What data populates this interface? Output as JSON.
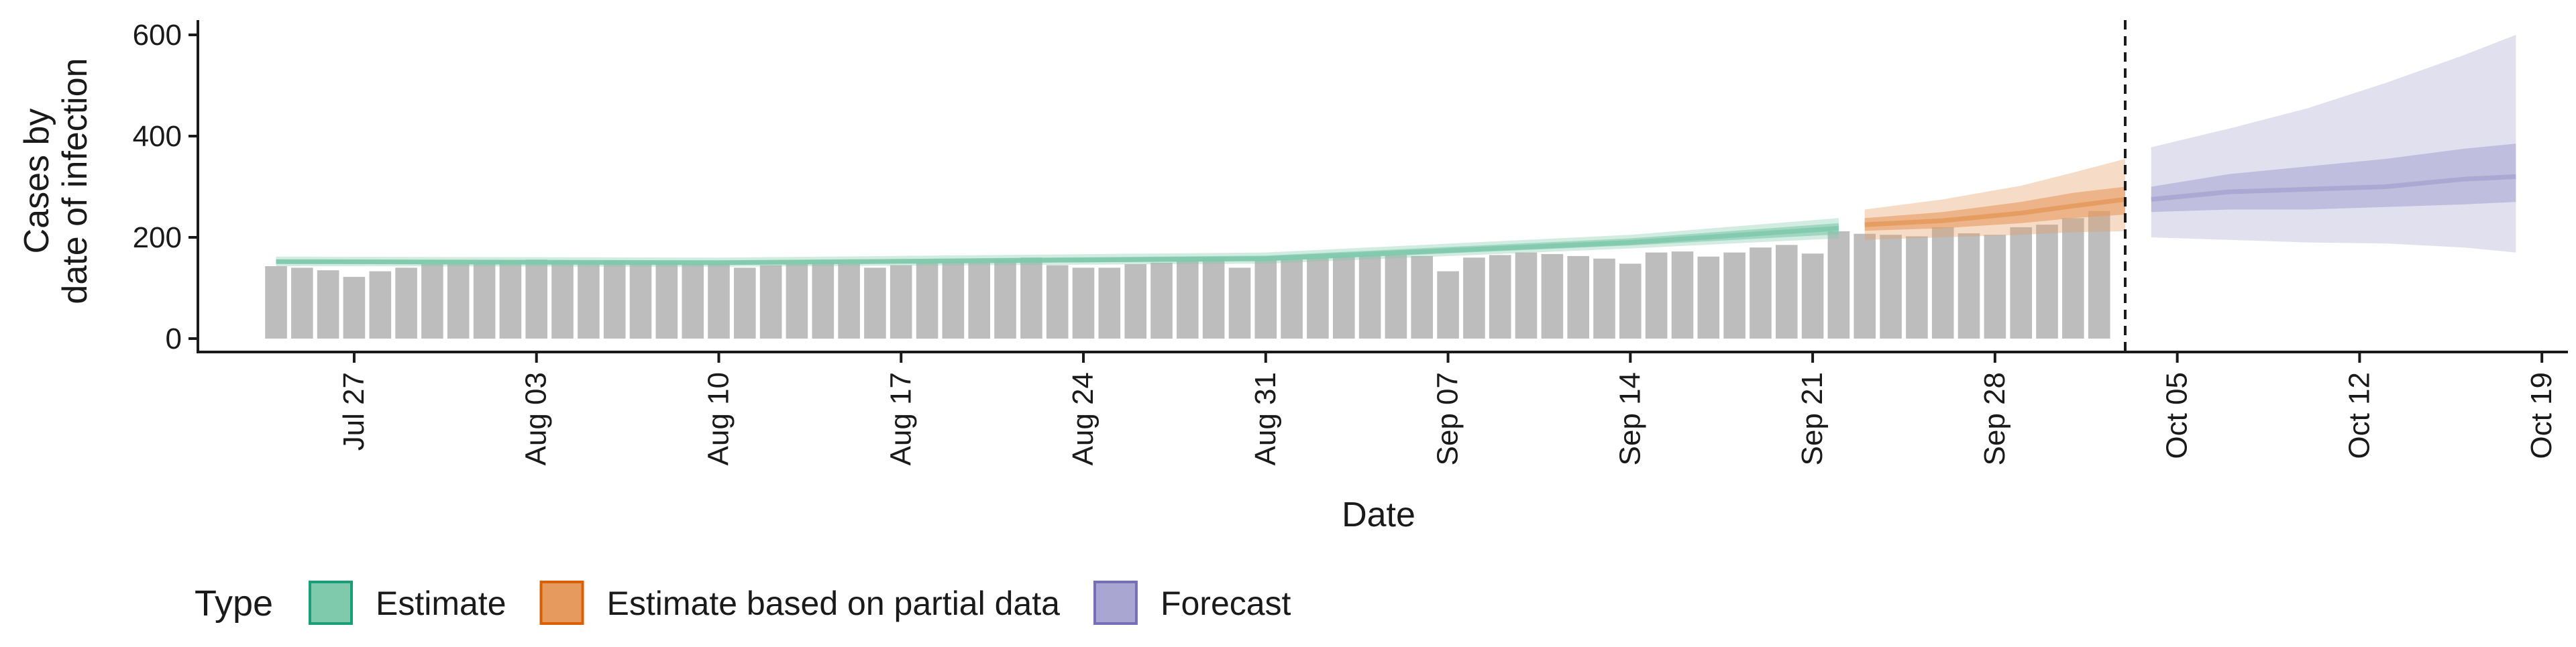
{
  "chart_data": {
    "type": "bar",
    "xlabel": "Date",
    "ylabel_lines": [
      "Cases by",
      "date of infection"
    ],
    "ylim": [
      0,
      620
    ],
    "y_ticks": [
      0,
      200,
      400,
      600
    ],
    "x_range": [
      "2021-07-21",
      "2021-10-20"
    ],
    "x_ticks": [
      {
        "date": "2021-07-27",
        "label": "Jul 27"
      },
      {
        "date": "2021-08-03",
        "label": "Aug 03"
      },
      {
        "date": "2021-08-10",
        "label": "Aug 10"
      },
      {
        "date": "2021-08-17",
        "label": "Aug 17"
      },
      {
        "date": "2021-08-24",
        "label": "Aug 24"
      },
      {
        "date": "2021-08-31",
        "label": "Aug 31"
      },
      {
        "date": "2021-09-07",
        "label": "Sep 07"
      },
      {
        "date": "2021-09-14",
        "label": "Sep 14"
      },
      {
        "date": "2021-09-21",
        "label": "Sep 21"
      },
      {
        "date": "2021-09-28",
        "label": "Sep 28"
      },
      {
        "date": "2021-10-05",
        "label": "Oct 05"
      },
      {
        "date": "2021-10-12",
        "label": "Oct 12"
      },
      {
        "date": "2021-10-19",
        "label": "Oct 19"
      }
    ],
    "observed": {
      "start_date": "2021-07-24",
      "color": "#bdbdbd",
      "values": [
        143,
        140,
        135,
        122,
        133,
        140,
        147,
        148,
        150,
        155,
        156,
        155,
        153,
        155,
        150,
        150,
        147,
        148,
        140,
        145,
        147,
        150,
        148,
        140,
        145,
        150,
        152,
        150,
        155,
        160,
        145,
        140,
        140,
        147,
        150,
        155,
        160,
        140,
        155,
        157,
        159,
        162,
        165,
        165,
        163,
        133,
        160,
        165,
        170,
        167,
        163,
        158,
        148,
        170,
        172,
        162,
        170,
        180,
        185,
        168,
        212,
        207,
        205,
        202,
        220,
        208,
        205,
        220,
        225,
        238,
        252
      ]
    },
    "forecast_line": {
      "date": "2021-10-03"
    },
    "series": [
      {
        "name": "Estimate",
        "color": "#1b9e77",
        "fill": "#7fc9ad",
        "dates": [
          "2021-07-24",
          "2021-08-10",
          "2021-08-31",
          "2021-09-14",
          "2021-09-22"
        ],
        "median": [
          152,
          150,
          158,
          190,
          218
        ],
        "inner": [
          [
            148,
            156
          ],
          [
            146,
            154
          ],
          [
            153,
            164
          ],
          [
            184,
            198
          ],
          [
            206,
            228
          ]
        ],
        "outer": [
          [
            143,
            162
          ],
          [
            142,
            160
          ],
          [
            148,
            170
          ],
          [
            178,
            205
          ],
          [
            198,
            238
          ]
        ]
      },
      {
        "name": "Estimate based on partial data",
        "color": "#d95f02",
        "fill": "#e69a5e",
        "dates": [
          "2021-09-23",
          "2021-09-26",
          "2021-09-29",
          "2021-10-01",
          "2021-10-03"
        ],
        "median": [
          225,
          233,
          248,
          262,
          275
        ],
        "inner": [
          [
            213,
            238
          ],
          [
            218,
            250
          ],
          [
            228,
            270
          ],
          [
            238,
            288
          ],
          [
            245,
            300
          ]
        ],
        "outer": [
          [
            195,
            255
          ],
          [
            200,
            275
          ],
          [
            205,
            302
          ],
          [
            210,
            328
          ],
          [
            212,
            355
          ]
        ]
      },
      {
        "name": "Forecast",
        "color": "#7570b3",
        "fill": "#a9a6d2",
        "dates": [
          "2021-10-04",
          "2021-10-07",
          "2021-10-10",
          "2021-10-13",
          "2021-10-16",
          "2021-10-18"
        ],
        "median": [
          275,
          290,
          295,
          300,
          315,
          320
        ],
        "inner": [
          [
            250,
            300
          ],
          [
            255,
            325
          ],
          [
            255,
            340
          ],
          [
            260,
            355
          ],
          [
            265,
            375
          ],
          [
            270,
            385
          ]
        ],
        "outer": [
          [
            200,
            378
          ],
          [
            195,
            415
          ],
          [
            190,
            455
          ],
          [
            188,
            505
          ],
          [
            180,
            560
          ],
          [
            170,
            600
          ]
        ]
      }
    ],
    "legend": {
      "title": "Type",
      "position": "bottom-left"
    }
  }
}
